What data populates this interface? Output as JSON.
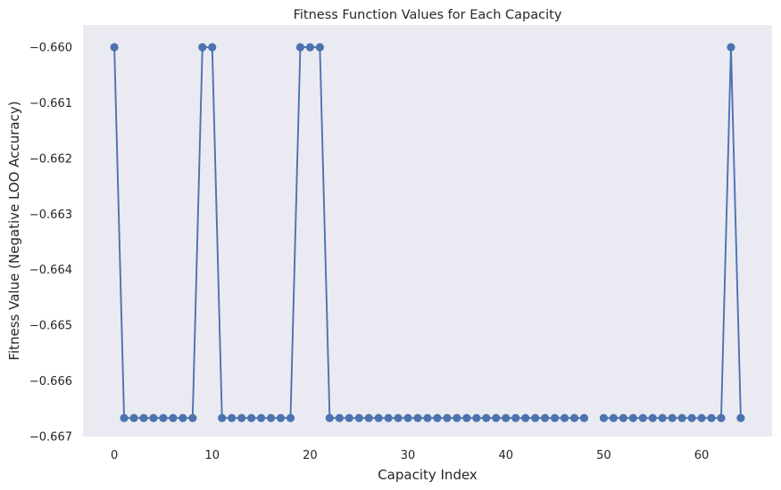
{
  "chart_data": {
    "type": "line",
    "title": "Fitness Function Values for Each Capacity",
    "xlabel": "Capacity Index",
    "ylabel": "Fitness Value (Negative LOO Accuracy)",
    "xlim": [
      -3.2,
      67.2
    ],
    "ylim": [
      -0.667,
      -0.6596
    ],
    "xticks": [
      0,
      10,
      20,
      30,
      40,
      50,
      60
    ],
    "yticks": [
      -0.66,
      -0.661,
      -0.662,
      -0.663,
      -0.664,
      -0.665,
      -0.666,
      -0.667
    ],
    "ytick_labels": [
      "−0.660",
      "−0.661",
      "−0.662",
      "−0.663",
      "−0.664",
      "−0.665",
      "−0.666",
      "−0.667"
    ],
    "grid": false,
    "series": [
      {
        "color": "#4c72b0",
        "marker": "circle",
        "x": [
          0,
          1,
          2,
          3,
          4,
          5,
          6,
          7,
          8,
          9,
          10,
          11,
          12,
          13,
          14,
          15,
          16,
          17,
          18,
          19,
          20,
          21,
          22,
          23,
          24,
          25,
          26,
          27,
          28,
          29,
          30,
          31,
          32,
          33,
          34,
          35,
          36,
          37,
          38,
          39,
          40,
          41,
          42,
          43,
          44,
          45,
          46,
          47,
          48,
          49,
          50,
          51,
          52,
          53,
          54,
          55,
          56,
          57,
          58,
          59,
          60,
          61,
          62,
          63,
          64
        ],
        "values": [
          -0.66,
          -0.666667,
          -0.666667,
          -0.666667,
          -0.666667,
          -0.666667,
          -0.666667,
          -0.666667,
          -0.666667,
          -0.66,
          -0.66,
          -0.666667,
          -0.666667,
          -0.666667,
          -0.666667,
          -0.666667,
          -0.666667,
          -0.666667,
          -0.666667,
          -0.66,
          -0.66,
          -0.66,
          -0.666667,
          -0.666667,
          -0.666667,
          -0.666667,
          -0.666667,
          -0.666667,
          -0.666667,
          -0.666667,
          -0.666667,
          -0.666667,
          -0.666667,
          -0.666667,
          -0.666667,
          -0.666667,
          -0.666667,
          -0.666667,
          -0.666667,
          -0.666667,
          -0.666667,
          -0.666667,
          -0.666667,
          -0.666667,
          -0.666667,
          -0.666667,
          -0.666667,
          -0.666667,
          -0.666667,
          null,
          -0.666667,
          -0.666667,
          -0.666667,
          -0.666667,
          -0.666667,
          -0.666667,
          -0.666667,
          -0.666667,
          -0.666667,
          -0.666667,
          -0.666667,
          -0.666667,
          -0.666667,
          -0.66,
          -0.666667
        ]
      }
    ]
  },
  "colors": {
    "plot_background": "#eaeaf2",
    "page_background": "#ffffff",
    "series": "#4c72b0"
  }
}
